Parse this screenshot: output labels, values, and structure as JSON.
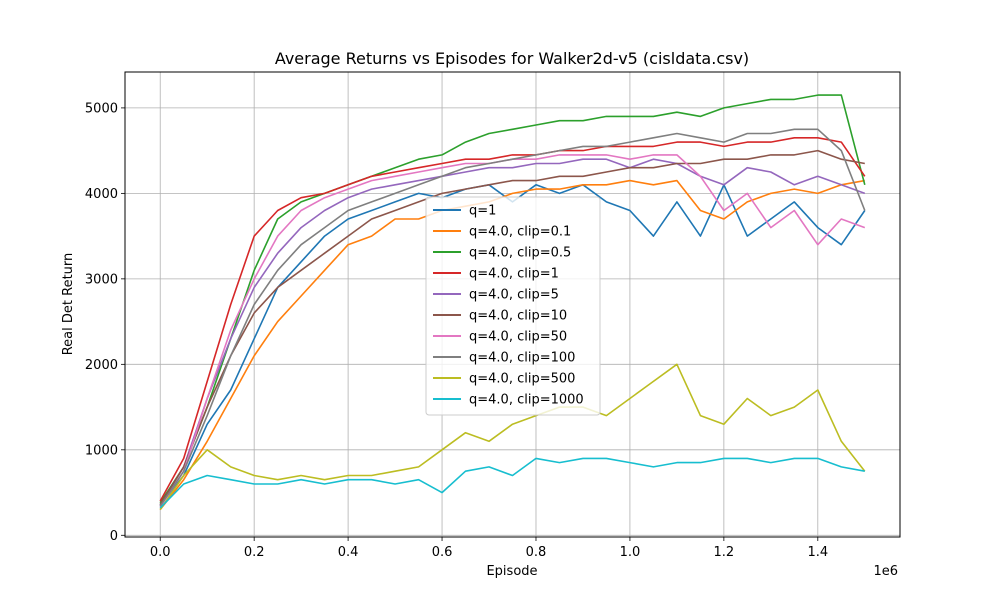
{
  "chart_data": {
    "type": "line",
    "title": "Average Returns vs Episodes for Walker2d-v5 (cisldata.csv)",
    "xlabel": "Episode",
    "ylabel": "Real Det Return",
    "x_offset_label": "1e6",
    "xlim": [
      -0.075,
      1.575
    ],
    "ylim": [
      -20,
      5420
    ],
    "x_unit_scale": 1000000,
    "xticks": [
      0.0,
      0.2,
      0.4,
      0.6,
      0.8,
      1.0,
      1.2,
      1.4
    ],
    "xtick_labels": [
      "0.0",
      "0.2",
      "0.4",
      "0.6",
      "0.8",
      "1.0",
      "1.2",
      "1.4"
    ],
    "yticks": [
      0,
      1000,
      2000,
      3000,
      4000,
      5000
    ],
    "ytick_labels": [
      "0",
      "1000",
      "2000",
      "3000",
      "4000",
      "5000"
    ],
    "grid": true,
    "legend_position": "center",
    "x": [
      0.0,
      0.05,
      0.1,
      0.15,
      0.2,
      0.25,
      0.3,
      0.35,
      0.4,
      0.45,
      0.5,
      0.55,
      0.6,
      0.65,
      0.7,
      0.75,
      0.8,
      0.85,
      0.9,
      0.95,
      1.0,
      1.05,
      1.1,
      1.15,
      1.2,
      1.25,
      1.3,
      1.35,
      1.4,
      1.45,
      1.5
    ],
    "series": [
      {
        "name": "q=1",
        "color": "#1f77b4",
        "values": [
          350,
          700,
          1300,
          1700,
          2300,
          2900,
          3200,
          3500,
          3700,
          3800,
          3900,
          4000,
          3950,
          4050,
          4100,
          3900,
          4100,
          4000,
          4100,
          3900,
          3800,
          3500,
          3900,
          3500,
          4100,
          3500,
          3700,
          3900,
          3600,
          3400,
          3800
        ]
      },
      {
        "name": "q=4.0, clip=0.1",
        "color": "#ff7f0e",
        "values": [
          300,
          650,
          1100,
          1600,
          2100,
          2500,
          2800,
          3100,
          3400,
          3500,
          3700,
          3700,
          3800,
          3850,
          3900,
          4000,
          4050,
          4050,
          4100,
          4100,
          4150,
          4100,
          4150,
          3800,
          3700,
          3900,
          4000,
          4050,
          4000,
          4100,
          4150
        ]
      },
      {
        "name": "q=4.0, clip=0.5",
        "color": "#2ca02c",
        "values": [
          380,
          800,
          1500,
          2300,
          3100,
          3700,
          3900,
          4000,
          4100,
          4200,
          4300,
          4400,
          4450,
          4600,
          4700,
          4750,
          4800,
          4850,
          4850,
          4900,
          4900,
          4900,
          4950,
          4900,
          5000,
          5050,
          5100,
          5100,
          5150,
          5150,
          4100
        ]
      },
      {
        "name": "q=4.0, clip=1",
        "color": "#d62728",
        "values": [
          400,
          900,
          1800,
          2700,
          3500,
          3800,
          3950,
          4000,
          4100,
          4200,
          4250,
          4300,
          4350,
          4400,
          4400,
          4450,
          4450,
          4500,
          4500,
          4550,
          4550,
          4550,
          4600,
          4600,
          4550,
          4600,
          4600,
          4650,
          4650,
          4600,
          4200
        ]
      },
      {
        "name": "q=4.0, clip=5",
        "color": "#9467bd",
        "values": [
          350,
          800,
          1600,
          2300,
          2900,
          3300,
          3600,
          3800,
          3950,
          4050,
          4100,
          4150,
          4200,
          4250,
          4300,
          4300,
          4350,
          4350,
          4400,
          4400,
          4300,
          4400,
          4350,
          4200,
          4100,
          4300,
          4250,
          4100,
          4200,
          4100,
          4000
        ]
      },
      {
        "name": "q=4.0, clip=10",
        "color": "#8c564b",
        "values": [
          360,
          800,
          1500,
          2100,
          2600,
          2900,
          3100,
          3300,
          3500,
          3700,
          3800,
          3900,
          4000,
          4050,
          4100,
          4150,
          4150,
          4200,
          4200,
          4250,
          4300,
          4300,
          4350,
          4350,
          4400,
          4400,
          4450,
          4450,
          4500,
          4400,
          4350
        ]
      },
      {
        "name": "q=4.0, clip=50",
        "color": "#e377c2",
        "values": [
          330,
          750,
          1600,
          2400,
          3000,
          3500,
          3800,
          3950,
          4050,
          4150,
          4200,
          4250,
          4300,
          4350,
          4350,
          4400,
          4400,
          4450,
          4450,
          4450,
          4400,
          4450,
          4450,
          4200,
          3800,
          4000,
          3600,
          3800,
          3400,
          3700,
          3600
        ]
      },
      {
        "name": "q=4.0, clip=100",
        "color": "#7f7f7f",
        "values": [
          340,
          750,
          1400,
          2100,
          2700,
          3100,
          3400,
          3600,
          3800,
          3900,
          4000,
          4100,
          4200,
          4300,
          4350,
          4400,
          4450,
          4500,
          4550,
          4550,
          4600,
          4650,
          4700,
          4650,
          4600,
          4700,
          4700,
          4750,
          4750,
          4500,
          3800
        ]
      },
      {
        "name": "q=4.0, clip=500",
        "color": "#bcbd22",
        "values": [
          300,
          700,
          1000,
          800,
          700,
          650,
          700,
          650,
          700,
          700,
          750,
          800,
          1000,
          1200,
          1100,
          1300,
          1400,
          1500,
          1500,
          1400,
          1600,
          1800,
          2000,
          1400,
          1300,
          1600,
          1400,
          1500,
          1700,
          1100,
          750
        ]
      },
      {
        "name": "q=4.0, clip=1000",
        "color": "#17becf",
        "values": [
          320,
          600,
          700,
          650,
          600,
          600,
          650,
          600,
          650,
          650,
          600,
          650,
          500,
          750,
          800,
          700,
          900,
          850,
          900,
          900,
          850,
          800,
          850,
          850,
          900,
          900,
          850,
          900,
          900,
          800,
          750
        ]
      }
    ]
  }
}
